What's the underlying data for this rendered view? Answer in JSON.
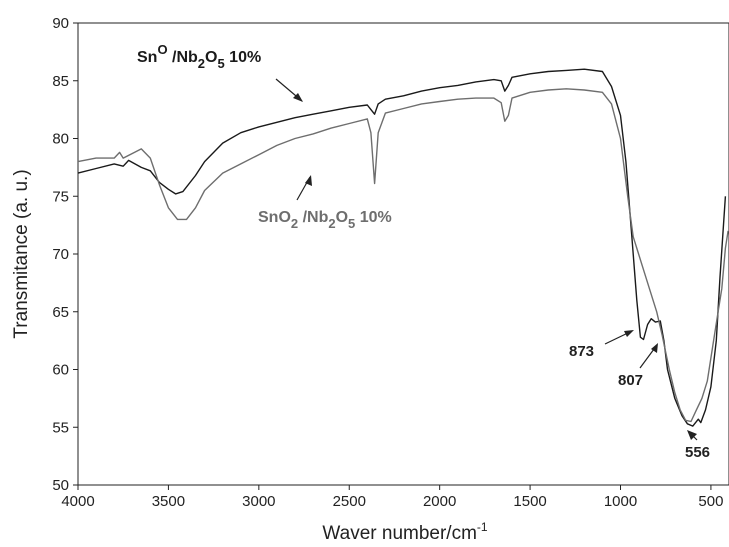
{
  "chart_data": {
    "type": "line",
    "title": "",
    "xlabel": "Waver number/cm",
    "xlabel_sup": "-1",
    "ylabel": "Transmitance (a. u.)",
    "xlim": [
      4000,
      400
    ],
    "ylim": [
      50,
      90
    ],
    "x_ticks": [
      4000,
      3500,
      3000,
      2500,
      2000,
      1500,
      1000,
      500
    ],
    "y_ticks": [
      50,
      55,
      60,
      65,
      70,
      75,
      80,
      85,
      90
    ],
    "grid": false,
    "series": [
      {
        "name_parts": [
          "Sn",
          "O",
          " /Nb",
          "2",
          "O",
          "5",
          " 10%"
        ],
        "color": "#1a1a1a",
        "points": [
          [
            4000,
            77.0
          ],
          [
            3900,
            77.4
          ],
          [
            3800,
            77.8
          ],
          [
            3750,
            77.6
          ],
          [
            3720,
            78.1
          ],
          [
            3650,
            77.5
          ],
          [
            3600,
            77.2
          ],
          [
            3550,
            76.2
          ],
          [
            3500,
            75.6
          ],
          [
            3460,
            75.2
          ],
          [
            3420,
            75.4
          ],
          [
            3350,
            76.8
          ],
          [
            3300,
            78.0
          ],
          [
            3200,
            79.6
          ],
          [
            3100,
            80.5
          ],
          [
            3000,
            81.0
          ],
          [
            2900,
            81.4
          ],
          [
            2800,
            81.8
          ],
          [
            2700,
            82.1
          ],
          [
            2600,
            82.4
          ],
          [
            2500,
            82.7
          ],
          [
            2400,
            82.9
          ],
          [
            2380,
            82.5
          ],
          [
            2360,
            82.1
          ],
          [
            2340,
            83.0
          ],
          [
            2300,
            83.4
          ],
          [
            2200,
            83.7
          ],
          [
            2100,
            84.1
          ],
          [
            2000,
            84.4
          ],
          [
            1900,
            84.6
          ],
          [
            1800,
            84.9
          ],
          [
            1700,
            85.1
          ],
          [
            1660,
            85.0
          ],
          [
            1640,
            84.1
          ],
          [
            1620,
            84.6
          ],
          [
            1600,
            85.3
          ],
          [
            1500,
            85.6
          ],
          [
            1400,
            85.8
          ],
          [
            1300,
            85.9
          ],
          [
            1200,
            86.0
          ],
          [
            1100,
            85.8
          ],
          [
            1050,
            84.5
          ],
          [
            1000,
            82.0
          ],
          [
            970,
            78.0
          ],
          [
            940,
            72.0
          ],
          [
            910,
            66.0
          ],
          [
            890,
            62.8
          ],
          [
            873,
            62.6
          ],
          [
            850,
            63.9
          ],
          [
            830,
            64.4
          ],
          [
            807,
            64.1
          ],
          [
            780,
            64.2
          ],
          [
            760,
            62.5
          ],
          [
            740,
            60.0
          ],
          [
            700,
            57.5
          ],
          [
            660,
            56.0
          ],
          [
            630,
            55.3
          ],
          [
            600,
            55.1
          ],
          [
            570,
            55.7
          ],
          [
            556,
            55.4
          ],
          [
            530,
            56.5
          ],
          [
            500,
            58.5
          ],
          [
            470,
            62.5
          ],
          [
            450,
            68.0
          ],
          [
            420,
            75.0
          ]
        ]
      },
      {
        "name_parts": [
          "SnO",
          "2",
          " /Nb",
          "2",
          "O",
          "5",
          " 10%"
        ],
        "color": "#6e6e6e",
        "points": [
          [
            4000,
            78.0
          ],
          [
            3900,
            78.3
          ],
          [
            3800,
            78.3
          ],
          [
            3770,
            78.8
          ],
          [
            3750,
            78.3
          ],
          [
            3700,
            78.7
          ],
          [
            3650,
            79.1
          ],
          [
            3600,
            78.3
          ],
          [
            3550,
            76.0
          ],
          [
            3500,
            74.0
          ],
          [
            3450,
            73.0
          ],
          [
            3400,
            73.0
          ],
          [
            3350,
            74.0
          ],
          [
            3300,
            75.5
          ],
          [
            3200,
            77.0
          ],
          [
            3100,
            77.8
          ],
          [
            3000,
            78.6
          ],
          [
            2900,
            79.4
          ],
          [
            2800,
            80.0
          ],
          [
            2700,
            80.4
          ],
          [
            2600,
            80.9
          ],
          [
            2500,
            81.3
          ],
          [
            2400,
            81.7
          ],
          [
            2380,
            80.5
          ],
          [
            2360,
            76.1
          ],
          [
            2340,
            80.5
          ],
          [
            2300,
            82.2
          ],
          [
            2200,
            82.6
          ],
          [
            2100,
            83.0
          ],
          [
            2000,
            83.2
          ],
          [
            1900,
            83.4
          ],
          [
            1800,
            83.5
          ],
          [
            1700,
            83.5
          ],
          [
            1660,
            83.1
          ],
          [
            1640,
            81.5
          ],
          [
            1620,
            82.0
          ],
          [
            1600,
            83.5
          ],
          [
            1500,
            84.0
          ],
          [
            1400,
            84.2
          ],
          [
            1300,
            84.3
          ],
          [
            1200,
            84.2
          ],
          [
            1100,
            84.0
          ],
          [
            1050,
            83.0
          ],
          [
            1000,
            80.0
          ],
          [
            960,
            75.0
          ],
          [
            930,
            71.5
          ],
          [
            900,
            70.0
          ],
          [
            870,
            68.5
          ],
          [
            840,
            67.0
          ],
          [
            800,
            65.0
          ],
          [
            770,
            63.0
          ],
          [
            730,
            60.0
          ],
          [
            700,
            58.0
          ],
          [
            670,
            56.5
          ],
          [
            640,
            55.6
          ],
          [
            610,
            55.5
          ],
          [
            580,
            56.5
          ],
          [
            550,
            57.5
          ],
          [
            520,
            59.0
          ],
          [
            490,
            62.0
          ],
          [
            460,
            65.0
          ],
          [
            440,
            67.0
          ],
          [
            420,
            70.5
          ],
          [
            405,
            72.0
          ]
        ]
      }
    ],
    "annotations": [
      {
        "text": "873",
        "x": 873,
        "y": 62.6
      },
      {
        "text": "807",
        "x": 807,
        "y": 64.1
      },
      {
        "text": "556",
        "x": 556,
        "y": 55.4
      }
    ]
  }
}
